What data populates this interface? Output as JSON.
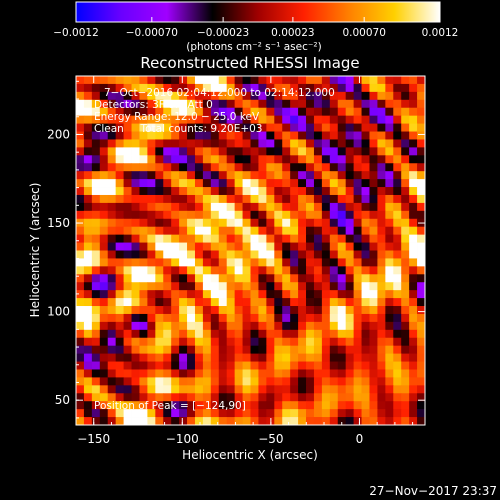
{
  "chart_data": {
    "type": "heatmap",
    "title": "Reconstructed RHESSI Image",
    "xlabel": "Heliocentric X (arcsec)",
    "ylabel": "Heliocentric Y (arcsec)",
    "xlim": [
      -160,
      37
    ],
    "ylim": [
      36,
      233
    ],
    "x_ticks": [
      -150,
      -100,
      -50,
      0
    ],
    "x_tick_labels": [
      "−150",
      "−100",
      "−50",
      "0"
    ],
    "y_ticks": [
      50,
      100,
      150,
      200
    ],
    "y_tick_labels": [
      "50",
      "100",
      "150",
      "200"
    ],
    "colorbar": {
      "range": [
        -0.0012,
        0.0012
      ],
      "ticks": [
        -0.0012,
        -0.0007,
        -0.00023,
        0.00023,
        0.0007,
        0.0012
      ],
      "tick_labels": [
        "−0.0012",
        "−0.00070",
        "−0.00023",
        "0.00023",
        "0.00070",
        "0.0012"
      ],
      "unit_label": "(photons cm⁻² s⁻¹ asec⁻²)",
      "colors": [
        "#0000ff",
        "#6a00ff",
        "#a000ff",
        "#000000",
        "#a00000",
        "#ff2000",
        "#ff8000",
        "#ffd000",
        "#ffffff"
      ]
    },
    "grid": false,
    "annotations": {
      "time": "7−Oct−2016 02:04:12.000 to 02:14:12.000",
      "detectors": "Detectors: 3F 8F, Att 0",
      "energy": "Energy Range: 12.0 − 25.0 keV",
      "clean": "Clean     Total counts: 9.20E+03",
      "peak": "Position of Peak = [−124,90]"
    }
  },
  "footer_timestamp": "27−Nov−2017 23:37"
}
